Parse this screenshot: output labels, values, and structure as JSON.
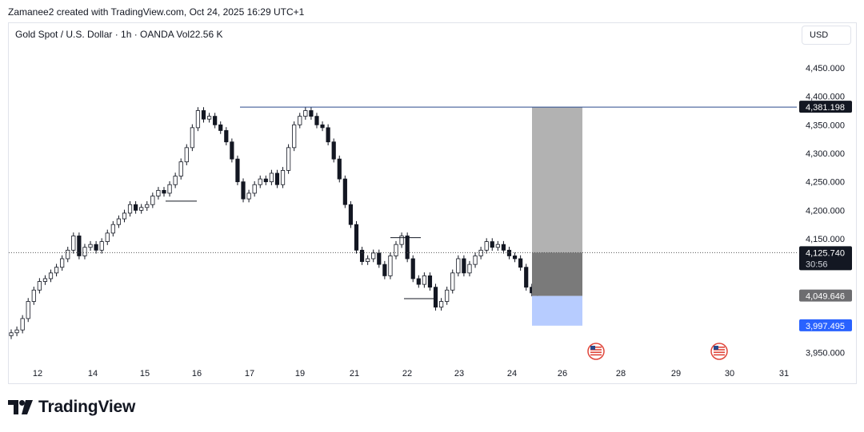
{
  "header": {
    "caption": "Zamanee2 created with TradingView.com, Oct 24, 2025 16:29 UTC+1",
    "symbol_line": "Gold Spot / U.S. Dollar · 1h · OANDA  Vol22.56 K",
    "currency_button": "USD"
  },
  "footer": {
    "brand": "TradingView"
  },
  "colors": {
    "up": "#ffffff",
    "down": "#131722",
    "resistance_line": "#2a4a8c",
    "box_top": "#b2b2b2",
    "box_mid": "#7a7a7a",
    "box_bottom": "#b7ccff",
    "label_dark": "#131722",
    "label_grey": "#6d6d70",
    "label_blue": "#2962ff"
  },
  "chart_data": {
    "type": "line",
    "title": "Gold Spot / U.S. Dollar · 1h · OANDA",
    "ylim": [
      3930,
      4485
    ],
    "y_ticks": [
      "4,450.000",
      "4,400.000",
      "4,350.000",
      "4,300.000",
      "4,250.000",
      "4,200.000",
      "4,150.000",
      "3,950.000"
    ],
    "y_tick_values": [
      4450,
      4400,
      4350,
      4300,
      4250,
      4200,
      4150,
      3950
    ],
    "x_ticks": [
      "12",
      "14",
      "15",
      "16",
      "17",
      "19",
      "21",
      "22",
      "23",
      "24",
      "26",
      "28",
      "29",
      "30",
      "31"
    ],
    "series": [
      {
        "values": [
          3985,
          3990,
          4010,
          4040,
          4060,
          4075,
          4080,
          4090,
          4100,
          4115,
          4130,
          4155,
          4120,
          4135,
          4140,
          4130,
          4145,
          4160,
          4175,
          4185,
          4195,
          4210,
          4200,
          4205,
          4210,
          4225,
          4235,
          4230,
          4245,
          4260,
          4285,
          4310,
          4345,
          4375,
          4360,
          4365,
          4350,
          4340,
          4320,
          4290,
          4250,
          4220,
          4230,
          4245,
          4255,
          4250,
          4265,
          4245,
          4270,
          4310,
          4350,
          4365,
          4375,
          4365,
          4350,
          4345,
          4320,
          4290,
          4255,
          4210,
          4175,
          4130,
          4110,
          4115,
          4125,
          4105,
          4085,
          4120,
          4140,
          4155,
          4115,
          4080,
          4070,
          4085,
          4065,
          4030,
          4040,
          4060,
          4090,
          4115,
          4090,
          4105,
          4120,
          4130,
          4145,
          4135,
          4140,
          4130,
          4120,
          4115,
          4100,
          4065,
          4055,
          4095,
          4125,
          4135
        ]
      }
    ],
    "price_labels": {
      "resistance": "4,381.198",
      "last": "4,125.740",
      "countdown": "30:56",
      "stop": "4,049.646",
      "target": "3,997.495"
    },
    "price_label_values": {
      "resistance": 4381.198,
      "last": 4125.74,
      "stop": 4049.646,
      "target": 3997.495
    },
    "position_box": {
      "top": 4381.198,
      "entry": 4125.74,
      "mid": 4049.646,
      "bottom": 3997.495
    },
    "grid": false,
    "legend": "none"
  }
}
